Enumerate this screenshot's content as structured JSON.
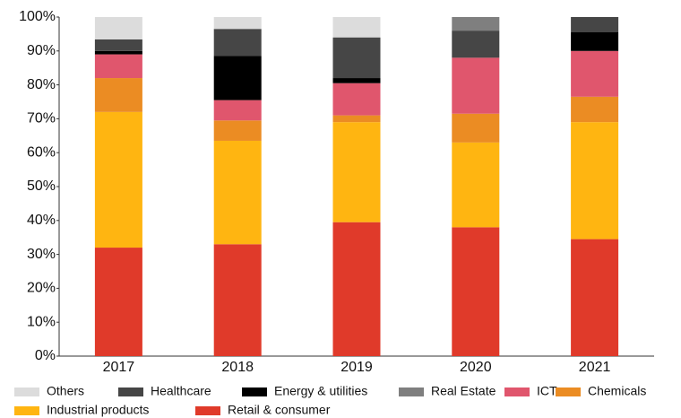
{
  "chart_data": {
    "type": "stacked_bar",
    "categories": [
      "2017",
      "2018",
      "2019",
      "2020",
      "2021"
    ],
    "series": [
      {
        "name": "Others",
        "color": "#dcdcdc",
        "values": [
          6.6,
          3.5,
          6,
          0,
          0
        ]
      },
      {
        "name": "Healthcare",
        "color": "#464646",
        "values": [
          3.4,
          8,
          12,
          8,
          4.5
        ]
      },
      {
        "name": "Energy & utilities",
        "color": "#000000",
        "values": [
          1,
          13,
          1.5,
          0,
          5.5
        ]
      },
      {
        "name": "Real Estate",
        "color": "#7f7f7f",
        "values": [
          0,
          0,
          0,
          4,
          0
        ]
      },
      {
        "name": "ICT",
        "color": "#e0566d",
        "values": [
          7,
          6,
          9.5,
          16.5,
          13.5
        ]
      },
      {
        "name": "Chemicals",
        "color": "#eb8c23",
        "values": [
          10,
          6,
          2,
          8.5,
          7.5
        ]
      },
      {
        "name": "Industrial products",
        "color": "#ffb511",
        "values": [
          40,
          30.5,
          29.5,
          25,
          34.5
        ]
      },
      {
        "name": "Retail & consumer",
        "color": "#e03a2a",
        "values": [
          32,
          33,
          39.5,
          38,
          34.5
        ]
      }
    ],
    "ylim": [
      0,
      100
    ],
    "yticks": [
      {
        "value": 0,
        "label": "0%"
      },
      {
        "value": 10,
        "label": "10%"
      },
      {
        "value": 20,
        "label": "20%"
      },
      {
        "value": 30,
        "label": "30%"
      },
      {
        "value": 40,
        "label": "40%"
      },
      {
        "value": 50,
        "label": "50%"
      },
      {
        "value": 60,
        "label": "60%"
      },
      {
        "value": 70,
        "label": "70%"
      },
      {
        "value": 80,
        "label": "80%"
      },
      {
        "value": 90,
        "label": "90%"
      },
      {
        "value": 100,
        "label": "100%"
      }
    ],
    "legend": "bottom"
  }
}
